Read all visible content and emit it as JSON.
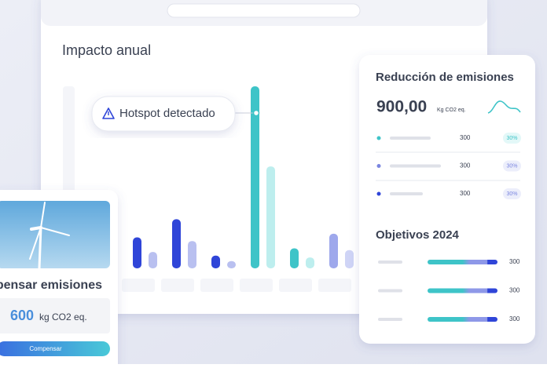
{
  "main_panel": {
    "title": "Impacto anual",
    "hotspot": "Hotspot detectado"
  },
  "chart_data": {
    "type": "bar",
    "values": [
      17,
      9,
      27,
      15,
      7,
      4,
      100,
      56,
      11,
      6,
      19,
      10
    ],
    "colors": [
      "#2f45d8",
      "#b9c0f0",
      "#2f45d8",
      "#b9c0f0",
      "#2f45d8",
      "#b9c0f0",
      "#3ec4c8",
      "#bdeeee",
      "#3ec4c8",
      "#bdeeee",
      "#9ea8ec",
      "#cfd4f6"
    ]
  },
  "emissions_card": {
    "title": "Reducción de emisiones",
    "total": "900,00",
    "unit": "Kg CO2 eq.",
    "rows": [
      {
        "value": "300",
        "percent": "30%"
      },
      {
        "value": "300",
        "percent": "30%"
      },
      {
        "value": "300",
        "percent": "30%"
      }
    ],
    "goals_title": "Objetivos 2024",
    "goals": [
      {
        "value": "300"
      },
      {
        "value": "300"
      },
      {
        "value": "300"
      }
    ]
  },
  "offset_card": {
    "title": "Compensar emisiones",
    "amount": "600",
    "unit": "kg CO2 eq.",
    "button": "Compensar"
  }
}
